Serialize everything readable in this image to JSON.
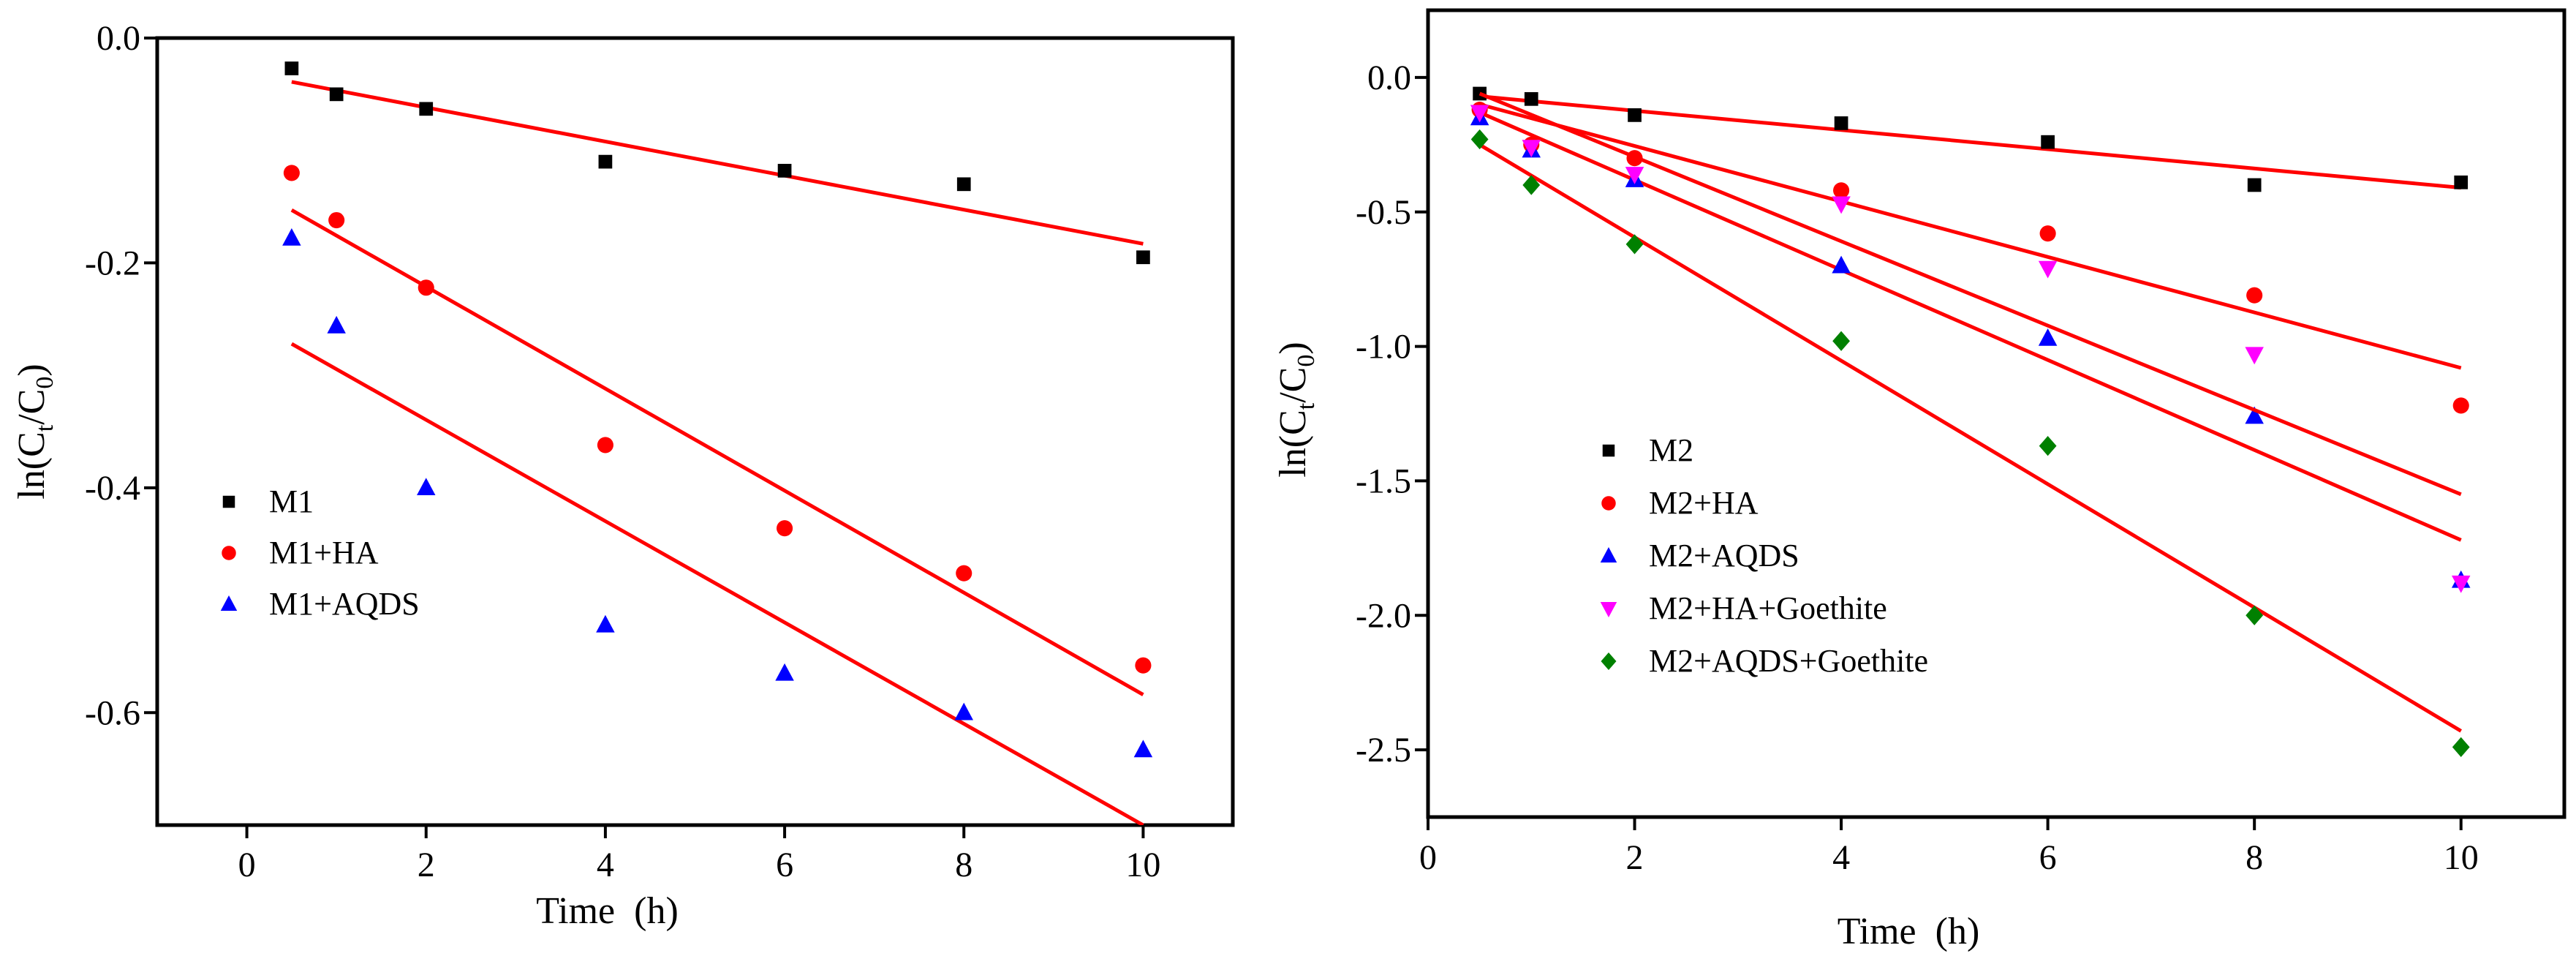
{
  "chart_data": [
    {
      "type": "scatter",
      "xlabel": "Time  (h)",
      "ylabel_parts": [
        "ln(C",
        "t",
        "/C",
        "0",
        ")"
      ],
      "xlim": [
        -1,
        11
      ],
      "ylim": [
        -0.7,
        0.0
      ],
      "x_ticks": [
        0,
        2,
        4,
        6,
        8,
        10
      ],
      "x_tick_labels": [
        "0",
        "2",
        "4",
        "6",
        "8",
        "10"
      ],
      "y_ticks": [
        0.0,
        -0.2,
        -0.4,
        -0.6
      ],
      "y_tick_labels": [
        "0.0",
        "-0.2",
        "-0.4",
        "-0.6"
      ],
      "legend_position": "left-middle",
      "series": [
        {
          "name": "M1",
          "marker": "square",
          "color": "#000000",
          "x": [
            0.5,
            1,
            2,
            4,
            6,
            8,
            10
          ],
          "y": [
            -0.027,
            -0.05,
            -0.063,
            -0.11,
            -0.118,
            -0.13,
            -0.195
          ],
          "fit": [
            [
              0.5,
              -0.039
            ],
            [
              10,
              -0.183
            ]
          ]
        },
        {
          "name": "M1+HA",
          "marker": "circle",
          "color": "#ff0000",
          "x": [
            0.5,
            1,
            2,
            4,
            6,
            8,
            10
          ],
          "y": [
            -0.12,
            -0.162,
            -0.222,
            -0.362,
            -0.436,
            -0.476,
            -0.558
          ],
          "fit": [
            [
              0.5,
              -0.153
            ],
            [
              10,
              -0.584
            ]
          ]
        },
        {
          "name": "M1+AQDS",
          "marker": "triangle-up",
          "color": "#0000ff",
          "x": [
            0.5,
            1,
            2,
            4,
            6,
            8,
            10
          ],
          "y": [
            -0.178,
            -0.256,
            -0.4,
            -0.522,
            -0.565,
            -0.6,
            -0.633
          ],
          "fit": [
            [
              0.5,
              -0.272
            ],
            [
              10,
              -0.7
            ]
          ]
        }
      ]
    },
    {
      "type": "scatter",
      "xlabel": "Time  (h)",
      "ylabel_parts": [
        "ln(C",
        "t",
        "/C",
        "0",
        ")"
      ],
      "xlim": [
        0,
        11
      ],
      "ylim": [
        -2.75,
        0.25
      ],
      "x_ticks": [
        0,
        2,
        4,
        6,
        8,
        10
      ],
      "x_tick_labels": [
        "0",
        "2",
        "4",
        "6",
        "8",
        "10"
      ],
      "y_ticks": [
        0.0,
        -0.5,
        -1.0,
        -1.5,
        -2.0,
        -2.5
      ],
      "y_tick_labels": [
        "0.0",
        "-0.5",
        "-1.0",
        "-1.5",
        "-2.0",
        "-2.5"
      ],
      "legend_position": "center",
      "series": [
        {
          "name": "M2",
          "marker": "square",
          "color": "#000000",
          "x": [
            0.5,
            1,
            2,
            4,
            6,
            8,
            10
          ],
          "y": [
            -0.06,
            -0.08,
            -0.14,
            -0.17,
            -0.24,
            -0.4,
            -0.39
          ],
          "fit": [
            [
              0.5,
              -0.07
            ],
            [
              10,
              -0.41
            ]
          ]
        },
        {
          "name": "M2+HA",
          "marker": "circle",
          "color": "#ff0000",
          "x": [
            0.5,
            1,
            2,
            4,
            6,
            8,
            10
          ],
          "y": [
            -0.12,
            -0.25,
            -0.3,
            -0.42,
            -0.58,
            -0.81,
            -1.22
          ],
          "fit": [
            [
              0.5,
              -0.1
            ],
            [
              10,
              -1.08
            ]
          ]
        },
        {
          "name": "M2+AQDS",
          "marker": "triangle-up",
          "color": "#0000ff",
          "x": [
            0.5,
            1,
            2,
            4,
            6,
            8,
            10
          ],
          "y": [
            -0.15,
            -0.27,
            -0.38,
            -0.7,
            -0.97,
            -1.26,
            -1.87
          ],
          "fit": [
            [
              0.5,
              -0.13
            ],
            [
              10,
              -1.72
            ]
          ]
        },
        {
          "name": "M2+HA+Goethite",
          "marker": "triangle-down",
          "color": "#ff00ff",
          "x": [
            0.5,
            1,
            2,
            4,
            6,
            8,
            10
          ],
          "y": [
            -0.13,
            -0.26,
            -0.36,
            -0.47,
            -0.71,
            -1.03,
            -1.88
          ],
          "fit": [
            [
              0.5,
              -0.06
            ],
            [
              10,
              -1.55
            ]
          ]
        },
        {
          "name": "M2+AQDS+Goethite",
          "marker": "diamond",
          "color": "#008000",
          "x": [
            0.5,
            1,
            2,
            4,
            6,
            8,
            10
          ],
          "y": [
            -0.23,
            -0.4,
            -0.62,
            -0.98,
            -1.37,
            -2.0,
            -2.49
          ],
          "fit": [
            [
              0.5,
              -0.25
            ],
            [
              10,
              -2.43
            ]
          ]
        }
      ]
    }
  ]
}
